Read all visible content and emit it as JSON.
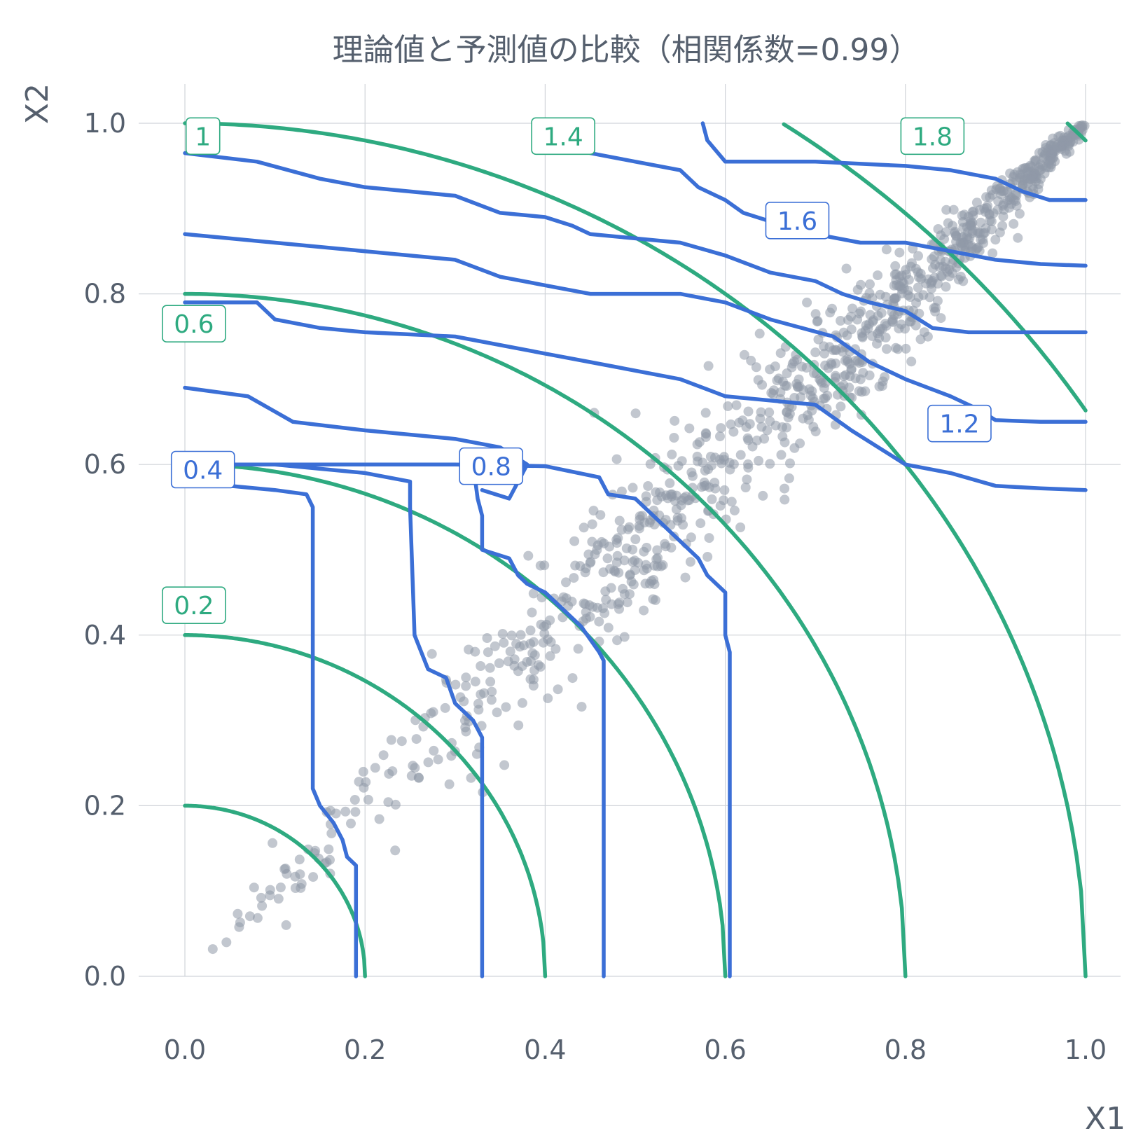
{
  "chart_data": {
    "type": "scatter",
    "title": "理論値と予測値の比較（相関係数=0.99）",
    "xlabel": "X1",
    "ylabel": "X2",
    "xlim": [
      -0.05,
      1.05
    ],
    "ylim": [
      -0.04,
      1.04
    ],
    "xticks": [
      0.0,
      0.2,
      0.4,
      0.6,
      0.8,
      1.0
    ],
    "yticks": [
      0.0,
      0.2,
      0.4,
      0.6,
      0.8,
      1.0
    ],
    "xtick_labels": [
      "0.0",
      "0.2",
      "0.4",
      "0.6",
      "0.8",
      "1.0"
    ],
    "ytick_labels": [
      "0.0",
      "0.2",
      "0.4",
      "0.6",
      "0.8",
      "1.0"
    ],
    "grid": true,
    "colors": {
      "points": "#8f99a8",
      "theoretical_contours": "#2eaa80",
      "predicted_contours": "#3b6fd6"
    },
    "scatter_description": "points lie along the diagonal X1 ≈ X2 from (0,0) to (1,1)",
    "theoretical_contours": [
      {
        "level": 0.2,
        "label": "0.2"
      },
      {
        "level": 0.4,
        "label": ""
      },
      {
        "level": 0.6,
        "label": "0.6"
      },
      {
        "level": 0.8,
        "label": ""
      },
      {
        "level": 1.0,
        "label": "1"
      },
      {
        "level": 1.2,
        "label": ""
      },
      {
        "level": 1.4,
        "label": "1.4"
      },
      {
        "level": 1.6,
        "label": ""
      },
      {
        "level": 1.8,
        "label": "1.8"
      }
    ],
    "predicted_contours": [
      {
        "level": 0.2,
        "label": "",
        "points": [
          [
            0.0,
            0.58
          ],
          [
            0.05,
            0.575
          ],
          [
            0.1,
            0.57
          ],
          [
            0.135,
            0.565
          ],
          [
            0.142,
            0.55
          ],
          [
            0.142,
            0.22
          ],
          [
            0.15,
            0.2
          ],
          [
            0.165,
            0.18
          ],
          [
            0.175,
            0.16
          ],
          [
            0.18,
            0.14
          ],
          [
            0.19,
            0.13
          ],
          [
            0.19,
            0.0
          ]
        ]
      },
      {
        "level": 0.4,
        "label": "0.4",
        "points": [
          [
            0.0,
            0.6
          ],
          [
            0.1,
            0.6
          ],
          [
            0.2,
            0.59
          ],
          [
            0.25,
            0.58
          ],
          [
            0.25,
            0.55
          ],
          [
            0.255,
            0.4
          ],
          [
            0.27,
            0.36
          ],
          [
            0.29,
            0.35
          ],
          [
            0.3,
            0.32
          ],
          [
            0.32,
            0.3
          ],
          [
            0.33,
            0.28
          ],
          [
            0.33,
            0.0
          ]
        ]
      },
      {
        "level": 0.6,
        "label": "",
        "points": [
          [
            0.0,
            0.69
          ],
          [
            0.07,
            0.68
          ],
          [
            0.12,
            0.65
          ],
          [
            0.2,
            0.64
          ],
          [
            0.3,
            0.63
          ],
          [
            0.35,
            0.62
          ],
          [
            0.38,
            0.6
          ],
          [
            0.36,
            0.56
          ],
          [
            0.33,
            0.57
          ],
          [
            0.33,
            0.57
          ]
        ]
      },
      {
        "level": 0.8,
        "label": "0.8",
        "points": [
          [
            0.0,
            0.6
          ],
          [
            0.1,
            0.6
          ],
          [
            0.2,
            0.6
          ],
          [
            0.3,
            0.6
          ],
          [
            0.4,
            0.598
          ],
          [
            0.46,
            0.585
          ],
          [
            0.47,
            0.565
          ],
          [
            0.5,
            0.56
          ],
          [
            0.52,
            0.54
          ],
          [
            0.54,
            0.52
          ],
          [
            0.57,
            0.49
          ],
          [
            0.58,
            0.47
          ],
          [
            0.6,
            0.45
          ],
          [
            0.6,
            0.4
          ],
          [
            0.605,
            0.38
          ],
          [
            0.605,
            0.0
          ]
        ]
      },
      {
        "level": 0.8,
        "label": "",
        "points": [
          [
            0.32,
            0.6
          ],
          [
            0.325,
            0.56
          ],
          [
            0.33,
            0.54
          ],
          [
            0.33,
            0.5
          ],
          [
            0.36,
            0.49
          ],
          [
            0.37,
            0.47
          ],
          [
            0.38,
            0.46
          ],
          [
            0.4,
            0.45
          ],
          [
            0.42,
            0.43
          ],
          [
            0.44,
            0.41
          ],
          [
            0.46,
            0.38
          ],
          [
            0.465,
            0.37
          ],
          [
            0.465,
            0.0
          ]
        ]
      },
      {
        "level": 1.0,
        "label": "",
        "points": [
          [
            0.0,
            0.79
          ],
          [
            0.08,
            0.79
          ],
          [
            0.1,
            0.77
          ],
          [
            0.15,
            0.76
          ],
          [
            0.2,
            0.755
          ],
          [
            0.3,
            0.75
          ],
          [
            0.4,
            0.73
          ],
          [
            0.45,
            0.72
          ],
          [
            0.55,
            0.7
          ],
          [
            0.6,
            0.68
          ],
          [
            0.7,
            0.67
          ],
          [
            0.74,
            0.64
          ],
          [
            0.77,
            0.62
          ],
          [
            0.8,
            0.6
          ],
          [
            0.85,
            0.59
          ],
          [
            0.9,
            0.575
          ],
          [
            0.95,
            0.572
          ],
          [
            1.0,
            0.57
          ]
        ]
      },
      {
        "level": 1.2,
        "label": "1.2",
        "points": [
          [
            0.0,
            0.87
          ],
          [
            0.1,
            0.86
          ],
          [
            0.2,
            0.85
          ],
          [
            0.3,
            0.84
          ],
          [
            0.35,
            0.82
          ],
          [
            0.4,
            0.81
          ],
          [
            0.45,
            0.8
          ],
          [
            0.55,
            0.8
          ],
          [
            0.6,
            0.79
          ],
          [
            0.65,
            0.77
          ],
          [
            0.72,
            0.75
          ],
          [
            0.76,
            0.72
          ],
          [
            0.8,
            0.7
          ],
          [
            0.85,
            0.68
          ],
          [
            0.88,
            0.665
          ],
          [
            0.9,
            0.652
          ],
          [
            0.95,
            0.65
          ],
          [
            1.0,
            0.65
          ]
        ]
      },
      {
        "level": 1.4,
        "label": "1.4",
        "points": [
          [
            0.0,
            0.965
          ],
          [
            0.08,
            0.955
          ],
          [
            0.15,
            0.935
          ],
          [
            0.2,
            0.925
          ],
          [
            0.3,
            0.915
          ],
          [
            0.35,
            0.895
          ],
          [
            0.4,
            0.89
          ],
          [
            0.43,
            0.88
          ],
          [
            0.45,
            0.87
          ],
          [
            0.5,
            0.865
          ],
          [
            0.55,
            0.86
          ],
          [
            0.6,
            0.845
          ],
          [
            0.65,
            0.825
          ],
          [
            0.7,
            0.815
          ],
          [
            0.73,
            0.8
          ],
          [
            0.76,
            0.79
          ],
          [
            0.8,
            0.78
          ],
          [
            0.83,
            0.76
          ],
          [
            0.87,
            0.755
          ],
          [
            0.95,
            0.755
          ],
          [
            1.0,
            0.755
          ]
        ]
      },
      {
        "level": 1.4,
        "label": "",
        "points": [
          [
            0.4,
            1.0
          ],
          [
            0.43,
            0.99
          ],
          [
            0.45,
            0.965
          ],
          [
            0.5,
            0.955
          ],
          [
            0.55,
            0.945
          ],
          [
            0.57,
            0.925
          ],
          [
            0.6,
            0.91
          ],
          [
            0.62,
            0.895
          ],
          [
            0.65,
            0.885
          ],
          [
            0.7,
            0.87
          ],
          [
            0.75,
            0.86
          ],
          [
            0.8,
            0.86
          ],
          [
            0.85,
            0.85
          ],
          [
            0.9,
            0.84
          ],
          [
            0.95,
            0.835
          ],
          [
            1.0,
            0.833
          ]
        ]
      },
      {
        "level": 1.6,
        "label": "1.6",
        "points": [
          [
            0.575,
            1.0
          ],
          [
            0.58,
            0.98
          ],
          [
            0.6,
            0.955
          ],
          [
            0.7,
            0.955
          ],
          [
            0.8,
            0.95
          ],
          [
            0.85,
            0.945
          ],
          [
            0.9,
            0.935
          ],
          [
            0.93,
            0.92
          ],
          [
            0.96,
            0.91
          ],
          [
            1.0,
            0.91
          ]
        ]
      }
    ],
    "n_points": 1000
  },
  "title": "理論値と予測値の比較（相関係数=0.99）",
  "xlabel": "X1",
  "ylabel": "X2"
}
